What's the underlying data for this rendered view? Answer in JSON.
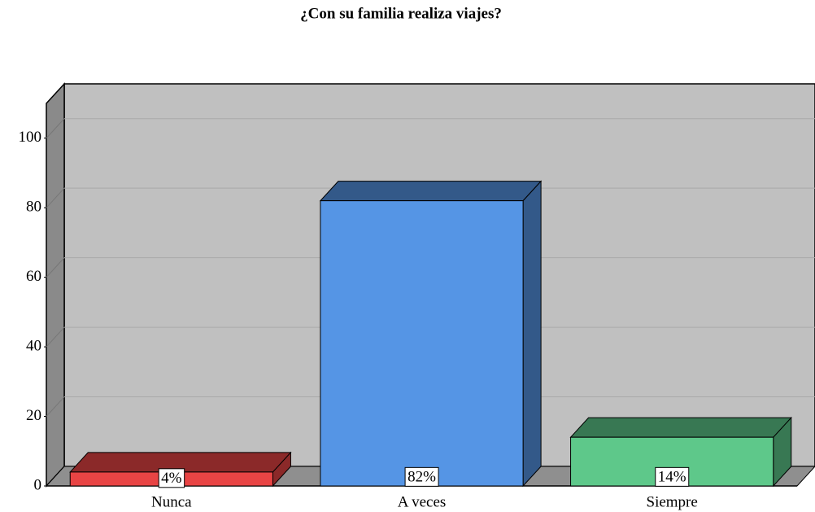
{
  "chart_data": {
    "type": "bar3d",
    "title": "¿Con su familia realiza viajes?",
    "categories": [
      "Nunca",
      "A veces",
      "Siempre"
    ],
    "values": [
      4,
      82,
      14
    ],
    "value_labels": [
      "4%",
      "82%",
      "14%"
    ],
    "colors": [
      "#e84444",
      "#5595e5",
      "#5ec88a"
    ],
    "ylim": [
      0,
      110
    ],
    "yticks": [
      0,
      20,
      40,
      60,
      80,
      100
    ],
    "grid": true
  }
}
